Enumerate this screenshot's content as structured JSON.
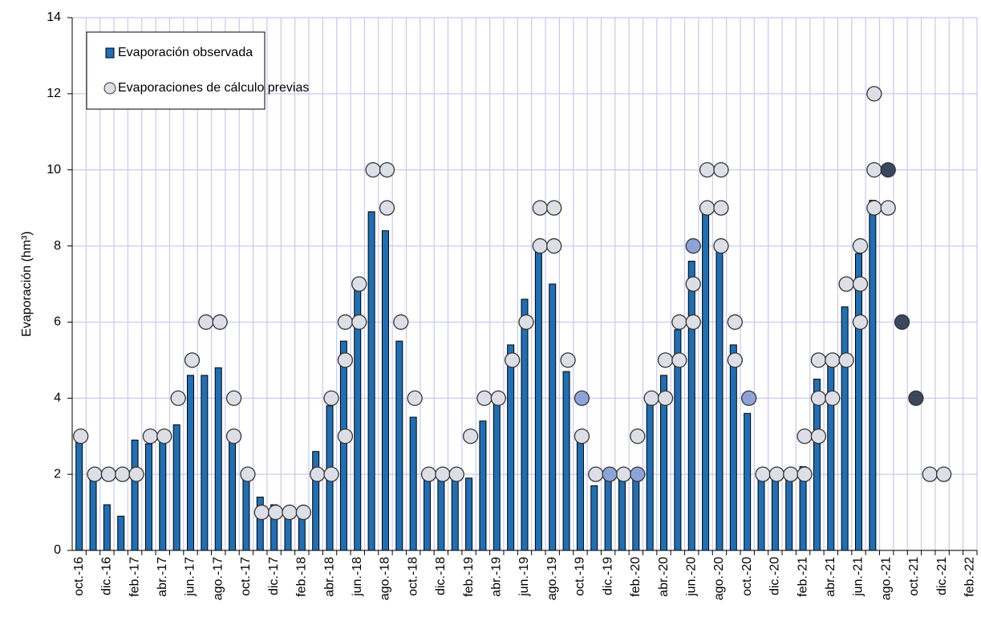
{
  "chart_data": {
    "type": "bar",
    "y_label": "Evaporación (hm³)",
    "categories": [
      "oct.-16",
      null,
      "dic.-16",
      null,
      "feb.-17",
      null,
      "abr.-17",
      null,
      "jun.-17",
      null,
      "ago.-17",
      null,
      "oct.-17",
      null,
      "dic.-17",
      null,
      "feb.-18",
      null,
      "abr.-18",
      null,
      "jun.-18",
      null,
      "ago.-18",
      null,
      "oct.-18",
      null,
      "dic.-18",
      null,
      "feb.-19",
      null,
      "abr.-19",
      null,
      "jun.-19",
      null,
      "ago.-19",
      null,
      "oct.-19",
      null,
      "dic.-19",
      null,
      "feb.-20",
      null,
      "abr.-20",
      null,
      "jun.-20",
      null,
      "ago.-20",
      null,
      "oct.-20",
      null,
      "dic.-20",
      null,
      "feb.-21",
      null,
      "abr.-21",
      null,
      "jun.-21",
      null,
      "ago.-21",
      null,
      "oct.-21",
      null,
      "dic.-21",
      null,
      "feb.-22"
    ],
    "series": [
      {
        "name": "Evaporación observada",
        "type": "bar",
        "color": "#1f6fb5",
        "values": [
          2.9,
          1.9,
          1.2,
          0.9,
          2.9,
          2.8,
          2.9,
          3.3,
          4.6,
          4.6,
          4.8,
          2.9,
          1.9,
          1.4,
          1.2,
          0.9,
          0.9,
          2.6,
          3.8,
          5.5,
          6.9,
          8.9,
          8.4,
          5.5,
          3.5,
          1.9,
          1.9,
          1.9,
          1.9,
          3.4,
          3.9,
          5.4,
          6.6,
          7.9,
          7.0,
          4.7,
          2.9,
          1.7,
          1.9,
          1.9,
          1.9,
          3.9,
          4.6,
          5.8,
          7.6,
          8.9,
          7.9,
          5.4,
          3.6,
          1.9,
          1.9,
          1.9,
          2.2,
          4.5,
          4.9,
          6.4,
          7.8,
          9.2,
          null,
          null,
          null,
          null,
          null,
          null,
          null
        ]
      },
      {
        "name": "Evaporaciones de cálculo previas",
        "type": "scatter",
        "color": "#dcdfe6",
        "values": [
          [
            3
          ],
          [
            2
          ],
          [
            2
          ],
          [
            2
          ],
          [
            2
          ],
          [
            3
          ],
          [
            3
          ],
          [
            4
          ],
          [
            5
          ],
          [
            6
          ],
          [
            6
          ],
          [
            4,
            3
          ],
          [
            2
          ],
          [
            1
          ],
          [
            1
          ],
          [
            1
          ],
          [
            1
          ],
          [
            2
          ],
          [
            4,
            2
          ],
          [
            6,
            5,
            3
          ],
          [
            7,
            6
          ],
          [
            10
          ],
          [
            10,
            9
          ],
          [
            6
          ],
          [
            4
          ],
          [
            2
          ],
          [
            2
          ],
          [
            2
          ],
          [
            3
          ],
          [
            4
          ],
          [
            4
          ],
          [
            5
          ],
          [
            6
          ],
          [
            9,
            8
          ],
          [
            9,
            8
          ],
          [
            5
          ],
          [
            3
          ],
          [
            2
          ],
          [],
          [
            2
          ],
          [
            3
          ],
          [
            4
          ],
          [
            5,
            4
          ],
          [
            6,
            5
          ],
          [
            7,
            6
          ],
          [
            10,
            9
          ],
          [
            10,
            9,
            8
          ],
          [
            6,
            5
          ],
          [],
          [
            2
          ],
          [
            2
          ],
          [
            2
          ],
          [
            3,
            2
          ],
          [
            5,
            4,
            3
          ],
          [
            5,
            4
          ],
          [
            7,
            5
          ],
          [
            8,
            7,
            6
          ],
          [
            12,
            10,
            9
          ],
          [
            9
          ],
          [],
          [],
          [
            2
          ],
          [
            2
          ],
          [],
          []
        ]
      },
      {
        "type": "scatter",
        "color": "#8ea4d8",
        "values": [
          [],
          [],
          [],
          [],
          [],
          [],
          [],
          [],
          [],
          [],
          [],
          [],
          [],
          [],
          [],
          [],
          [],
          [],
          [],
          [],
          [],
          [],
          [],
          [],
          [],
          [],
          [],
          [],
          [],
          [],
          [],
          [],
          [],
          [],
          [],
          [],
          [
            4
          ],
          [],
          [
            2
          ],
          [],
          [
            2
          ],
          [],
          [],
          [],
          [
            8
          ],
          [],
          [],
          [],
          [
            4
          ],
          [],
          [],
          [],
          [],
          [],
          [],
          [],
          [],
          [],
          [],
          [],
          [],
          [],
          [],
          [],
          []
        ]
      },
      {
        "type": "scatter",
        "color": "#3b475c",
        "values": [
          [],
          [],
          [],
          [],
          [],
          [],
          [],
          [],
          [],
          [],
          [],
          [],
          [],
          [],
          [],
          [],
          [],
          [],
          [],
          [],
          [],
          [],
          [],
          [],
          [],
          [],
          [],
          [],
          [],
          [],
          [],
          [],
          [],
          [],
          [],
          [],
          [],
          [],
          [],
          [],
          [],
          [],
          [],
          [],
          [],
          [],
          [],
          [],
          [],
          [],
          [],
          [],
          [],
          [],
          [],
          [],
          [],
          [],
          [
            10
          ],
          [
            6
          ],
          [
            4
          ],
          [],
          [],
          [],
          []
        ]
      }
    ],
    "ylim": [
      0,
      14
    ],
    "yticks": [
      0,
      2,
      4,
      6,
      8,
      10,
      12,
      14
    ],
    "grid": true,
    "legend": "upper left"
  }
}
